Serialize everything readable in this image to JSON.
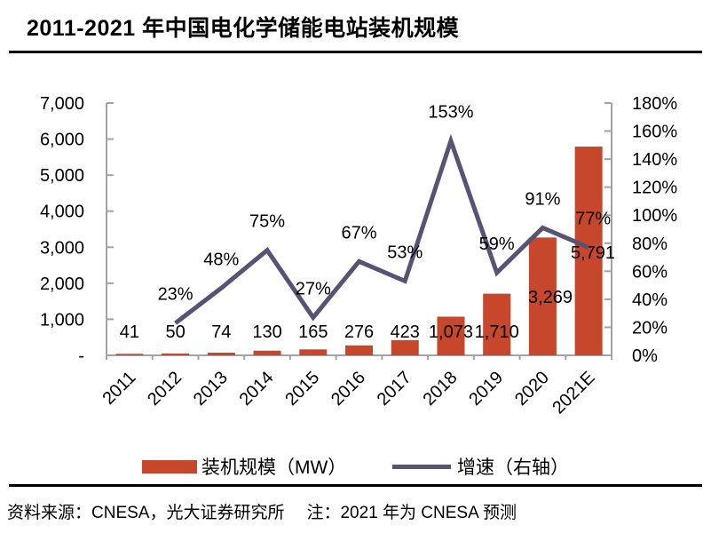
{
  "page": {
    "title": "2011-2021 年中国电化学储能电站装机规模"
  },
  "chart_data": {
    "type": "bar+line combo",
    "title": "2011-2021 年中国电化学储能电站装机规模",
    "categories": [
      "2011",
      "2012",
      "2013",
      "2014",
      "2015",
      "2016",
      "2017",
      "2018",
      "2019",
      "2020",
      "2021E"
    ],
    "series": [
      {
        "name": "装机规模（MW）",
        "type": "bar",
        "axis": "left",
        "unit": "MW",
        "values": [
          41,
          50,
          74,
          130,
          165,
          276,
          423,
          1073,
          1710,
          3269,
          5791
        ],
        "labels": [
          "41",
          "50",
          "74",
          "130",
          "165",
          "276",
          "423",
          "1,073",
          "1,710",
          "3,269",
          "5,791"
        ]
      },
      {
        "name": "增速（右轴）",
        "type": "line",
        "axis": "right",
        "unit": "%",
        "values": [
          null,
          23,
          48,
          75,
          27,
          67,
          53,
          153,
          59,
          91,
          77
        ],
        "labels": [
          null,
          "23%",
          "48%",
          "75%",
          "27%",
          "67%",
          "53%",
          "153%",
          "59%",
          "91%",
          "77%"
        ]
      }
    ],
    "left_axis": {
      "min": 0,
      "max": 7000,
      "tick_step": 1000,
      "tick_labels": [
        "-",
        "1,000",
        "2,000",
        "3,000",
        "4,000",
        "5,000",
        "6,000",
        "7,000"
      ]
    },
    "right_axis": {
      "min": 0,
      "max": 180,
      "tick_step": 20,
      "tick_labels": [
        "0%",
        "20%",
        "40%",
        "60%",
        "80%",
        "100%",
        "120%",
        "140%",
        "160%",
        "180%"
      ]
    },
    "legend_position": "bottom",
    "grid": false
  },
  "legend": {
    "bar_label": "装机规模（MW）",
    "line_label": "增速（右轴）"
  },
  "footer": {
    "source": "资料来源：CNESA，光大证券研究所",
    "note": "注：2021 年为 CNESA 预测"
  },
  "colors": {
    "bar": "#C6472B",
    "line": "#585274",
    "axis": "#A3A3A3",
    "text": "#000000",
    "divider": "#000000"
  }
}
